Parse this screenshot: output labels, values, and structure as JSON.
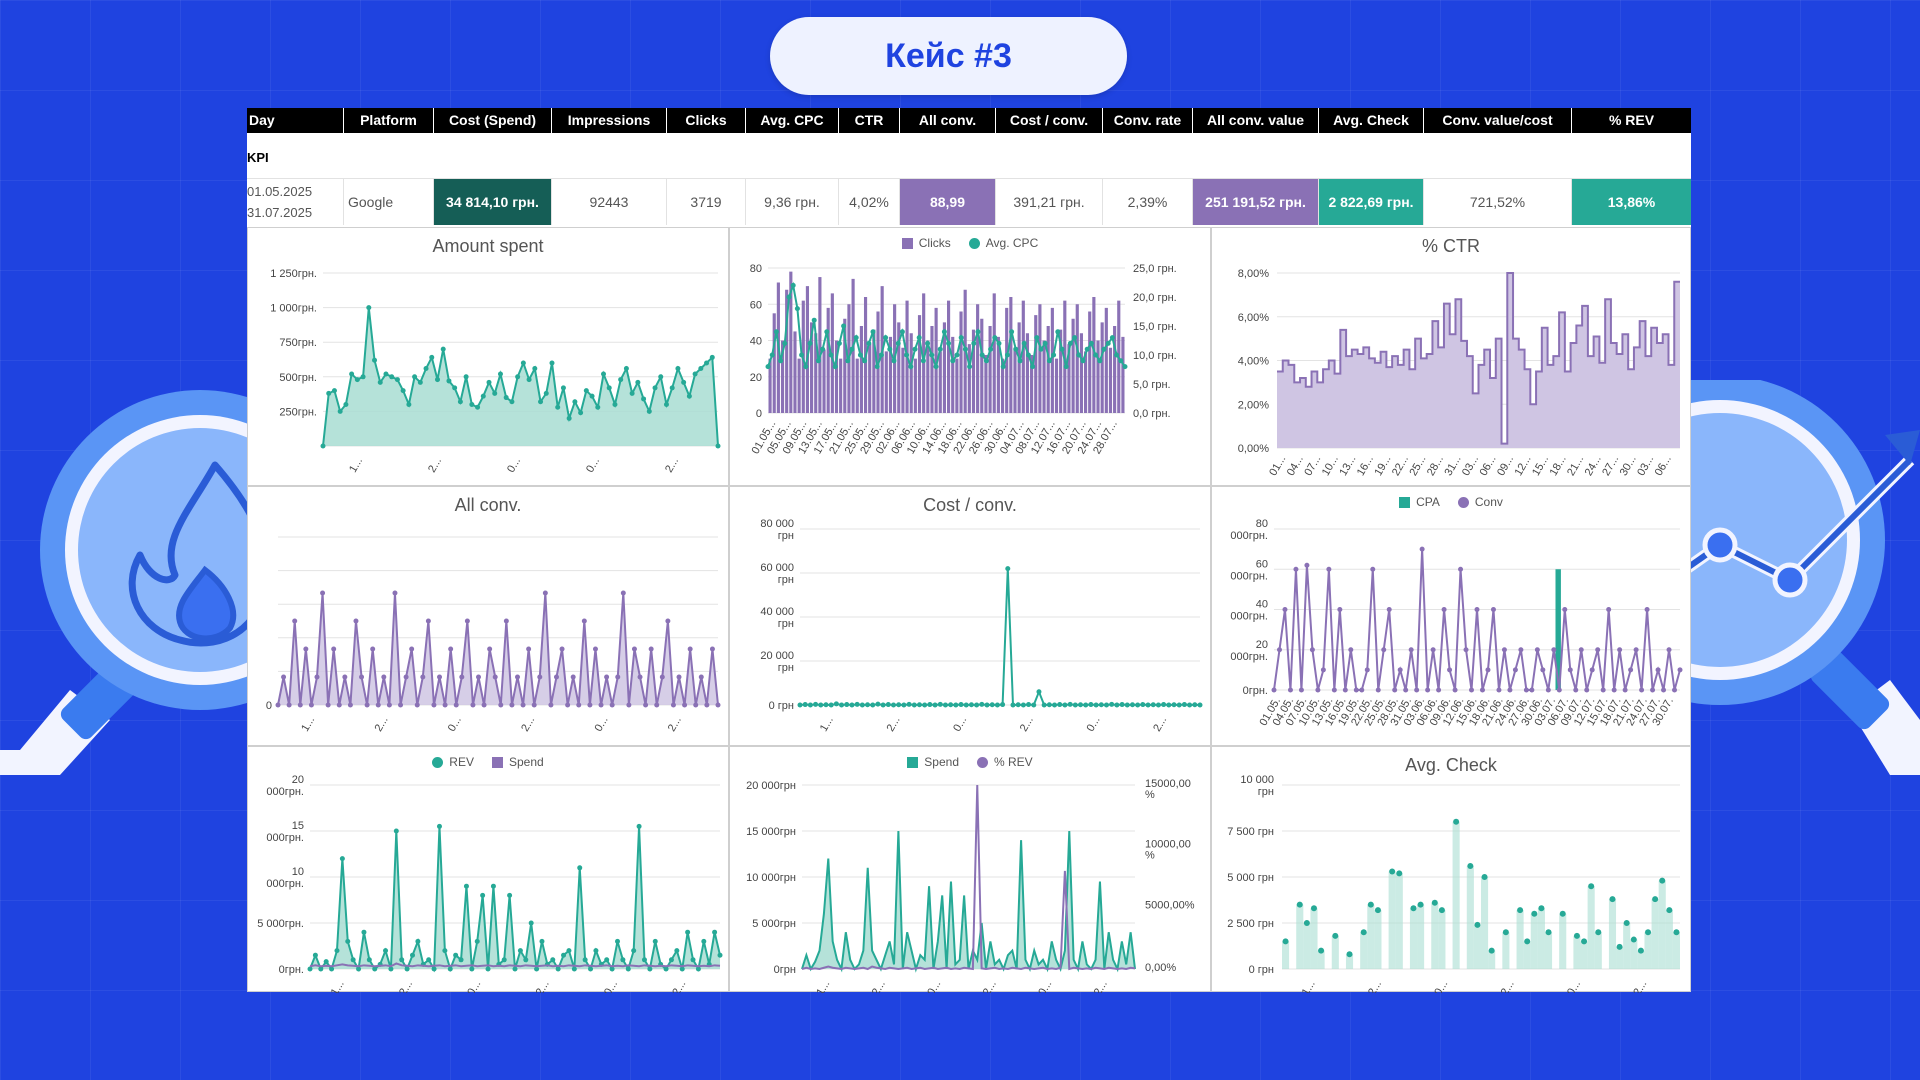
{
  "title": "Кейс #3",
  "colors": {
    "background": "#1f43e0",
    "teal": "#26a996",
    "teal_dark": "#155e56",
    "purple": "#8a71b5",
    "teal_fill": "#a8ddd2",
    "purple_fill": "#cfc5e3"
  },
  "table": {
    "headers": [
      "Day",
      "Platform",
      "Cost (Spend)",
      "Impressions",
      "Clicks",
      "Avg. CPC",
      "CTR",
      "All conv.",
      "Cost / conv.",
      "Conv. rate",
      "All conv. value",
      "Avg. Check",
      "Conv. value/cost",
      "% REV"
    ],
    "kpi_label": "KPI",
    "row": {
      "date_from": "01.05.2025",
      "date_to": "31.07.2025",
      "platform": "Google",
      "cost": "34 814,10 грн.",
      "impressions": "92443",
      "clicks": "3719",
      "avg_cpc": "9,36 грн.",
      "ctr": "4,02%",
      "all_conv": "88,99",
      "cost_conv": "391,21 грн.",
      "conv_rate": "2,39%",
      "all_conv_value": "251 191,52 грн.",
      "avg_check": "2 822,69 грн.",
      "conv_value_cost": "721,52%",
      "rev": "13,86%"
    }
  },
  "chart_data": [
    {
      "id": "amount-spent",
      "type": "area",
      "title": "Amount spent",
      "y_ticks": [
        "1 250грн.",
        "1 000грн.",
        "750грн.",
        "500грн.",
        "250грн."
      ],
      "x_ticks": [
        "1...",
        "2...",
        "0...",
        "0...",
        "2..."
      ],
      "ylim": [
        0,
        1250
      ],
      "values": [
        0,
        380,
        400,
        250,
        300,
        520,
        480,
        500,
        1000,
        620,
        460,
        520,
        500,
        480,
        400,
        300,
        500,
        460,
        560,
        640,
        480,
        700,
        470,
        420,
        320,
        500,
        300,
        280,
        360,
        460,
        380,
        520,
        350,
        320,
        500,
        600,
        480,
        560,
        320,
        380,
        600,
        280,
        420,
        200,
        320,
        240,
        400,
        360,
        280,
        520,
        420,
        300,
        480,
        560,
        380,
        460,
        340,
        250,
        420,
        500,
        300,
        420,
        560,
        460,
        360,
        520,
        560,
        600,
        640,
        0
      ]
    },
    {
      "id": "clicks-cpc",
      "type": "bar",
      "legend": [
        "Clicks",
        "Avg. CPC"
      ],
      "y_left_ticks": [
        "80",
        "60",
        "40",
        "20",
        "0"
      ],
      "y_right_ticks": [
        "25,0 грн.",
        "20,0 грн.",
        "15,0 грн.",
        "10,0 грн.",
        "5,0 грн.",
        "0,0 грн."
      ],
      "x_ticks": [
        "01.05...",
        "05.05...",
        "09.05...",
        "13.05...",
        "17.05...",
        "21.05...",
        "25.05...",
        "29.05...",
        "02.06...",
        "06.06...",
        "10.06...",
        "14.06...",
        "18.06...",
        "22.06...",
        "26.06...",
        "30.06...",
        "04.07...",
        "08.07...",
        "12.07...",
        "16.07...",
        "20.07...",
        "24.07...",
        "28.07..."
      ],
      "clicks": [
        30,
        55,
        72,
        40,
        68,
        78,
        45,
        30,
        62,
        70,
        50,
        44,
        75,
        35,
        58,
        66,
        40,
        30,
        52,
        60,
        74,
        30,
        48,
        64,
        38,
        46,
        56,
        70,
        34,
        42,
        60,
        50,
        36,
        62,
        44,
        30,
        54,
        66,
        40,
        48,
        58,
        34,
        50,
        62,
        42,
        30,
        56,
        68,
        38,
        46,
        60,
        52,
        32,
        48,
        66,
        42,
        30,
        58,
        64,
        36,
        50,
        62,
        44,
        32,
        54,
        60,
        40,
        48,
        58,
        30,
        46,
        62,
        38,
        52,
        60,
        44,
        34,
        56,
        64,
        40,
        50,
        58,
        36,
        48,
        62,
        42
      ],
      "cpc": [
        8,
        10,
        14,
        9,
        12,
        20,
        22,
        18,
        10,
        8,
        12,
        16,
        9,
        11,
        14,
        10,
        8,
        12,
        15,
        9,
        11,
        13,
        10,
        9,
        12,
        14,
        8,
        10,
        13,
        11,
        9,
        12,
        14,
        10,
        8,
        11,
        13,
        9,
        12,
        10,
        8,
        11,
        14,
        12,
        9,
        10,
        13,
        11,
        8,
        12,
        14,
        10,
        9,
        11,
        13,
        12,
        8,
        10,
        14,
        11,
        9,
        12,
        10,
        8,
        13,
        11,
        12,
        9,
        10,
        14,
        11,
        8,
        12,
        13,
        10,
        9,
        11,
        12,
        10,
        9,
        11,
        12,
        13,
        10,
        9,
        8
      ]
    },
    {
      "id": "ctr",
      "type": "area",
      "title": "% CTR",
      "y_ticks": [
        "8,00%",
        "6,00%",
        "4,00%",
        "2,00%",
        "0,00%"
      ],
      "x_ticks": [
        "01...",
        "04...",
        "07...",
        "10...",
        "13...",
        "16...",
        "19...",
        "22...",
        "25...",
        "28...",
        "31...",
        "03...",
        "06...",
        "09...",
        "12...",
        "15...",
        "18...",
        "21...",
        "24...",
        "27...",
        "30...",
        "03...",
        "06..."
      ],
      "ylim": [
        0,
        8
      ],
      "values": [
        3.5,
        4,
        3.8,
        3,
        3.2,
        2.8,
        3.5,
        3,
        3.6,
        4,
        3.4,
        5.4,
        4.2,
        4.5,
        4.3,
        4.6,
        4.1,
        3.9,
        4.4,
        3.7,
        4.2,
        3.8,
        4.5,
        3.6,
        5,
        4.1,
        4.3,
        5.8,
        4.6,
        6.6,
        5.2,
        6.8,
        4.9,
        4.2,
        2.5,
        3.8,
        4.5,
        3.2,
        5,
        0.2,
        8,
        5,
        4.5,
        3.6,
        2,
        3.5,
        5.5,
        3.8,
        4.2,
        6.2,
        3.5,
        4.8,
        5.6,
        6.5,
        4.2,
        5.1,
        3.9,
        6.8,
        4.8,
        4.3,
        5.2,
        3.6,
        4.6,
        5.8,
        4.2,
        5.5,
        4.8,
        5.2,
        3.8,
        7.6
      ]
    },
    {
      "id": "all-conv",
      "type": "area",
      "title": "All conv.",
      "y_ticks": [
        "0"
      ],
      "x_ticks": [
        "1...",
        "2...",
        "0...",
        "2...",
        "0...",
        "2..."
      ],
      "values": [
        0,
        1,
        0,
        3,
        0,
        2,
        0,
        1,
        4,
        0,
        2,
        0,
        1,
        0,
        3,
        1,
        0,
        2,
        0,
        1,
        0,
        4,
        0,
        1,
        2,
        0,
        1,
        3,
        0,
        1,
        0,
        2,
        0,
        1,
        3,
        0,
        1,
        0,
        2,
        1,
        0,
        3,
        0,
        1,
        0,
        2,
        0,
        1,
        4,
        0,
        1,
        2,
        0,
        1,
        0,
        3,
        0,
        2,
        0,
        1,
        0,
        1,
        4,
        0,
        2,
        1,
        0,
        2,
        0,
        1,
        3,
        0,
        1,
        0,
        2,
        0,
        1,
        0,
        2,
        0
      ]
    },
    {
      "id": "cost-conv",
      "type": "line",
      "title": "Cost / conv.",
      "y_ticks": [
        "80 000 грн",
        "60 000 грн",
        "40 000 грн",
        "20 000 грн",
        "0 грн"
      ],
      "x_ticks": [
        "1...",
        "2...",
        "0...",
        "2...",
        "0...",
        "2..."
      ],
      "ylim": [
        0,
        80000
      ],
      "values": [
        0,
        200,
        0,
        300,
        0,
        100,
        0,
        500,
        0,
        200,
        0,
        300,
        0,
        100,
        0,
        400,
        0,
        200,
        0,
        100,
        0,
        300,
        0,
        100,
        0,
        200,
        0,
        300,
        0,
        100,
        0,
        200,
        0,
        100,
        0,
        300,
        0,
        100,
        0,
        200,
        62000,
        0,
        100,
        0,
        200,
        0,
        6000,
        0,
        100,
        0,
        200,
        0,
        300,
        0,
        100,
        0,
        200,
        0,
        100,
        0,
        300,
        0,
        200,
        0,
        100,
        0,
        200,
        0,
        100,
        0,
        200,
        0,
        100,
        0,
        200,
        0,
        100,
        0
      ]
    },
    {
      "id": "cpa-conv",
      "type": "bar",
      "legend": [
        "CPA",
        "Conv"
      ],
      "y_ticks": [
        "80 000грн.",
        "60 000грн.",
        "40 000грн.",
        "20 000грн.",
        "0грн."
      ],
      "x_ticks": [
        "01.05.",
        "04.05.",
        "07.05.",
        "10.05.",
        "13.05.",
        "16.05.",
        "19.05.",
        "22.05.",
        "25.05.",
        "28.05.",
        "31.05.",
        "03.06.",
        "06.06.",
        "09.06.",
        "12.06.",
        "15.06.",
        "18.06.",
        "21.06.",
        "24.06.",
        "27.06.",
        "30.06.",
        "03.07.",
        "06.07.",
        "09.07.",
        "12.07.",
        "15.07.",
        "18.07.",
        "21.07.",
        "24.07.",
        "27.07.",
        "30.07."
      ],
      "ylim": [
        0,
        80000
      ],
      "cpa": [
        0,
        0,
        0,
        0,
        0,
        0,
        0,
        0,
        0,
        0,
        0,
        0,
        0,
        0,
        0,
        0,
        0,
        0,
        0,
        0,
        0,
        0,
        0,
        0,
        0,
        0,
        0,
        0,
        0,
        0,
        0,
        0,
        0,
        0,
        0,
        0,
        0,
        0,
        0,
        0,
        0,
        0,
        0,
        0,
        0,
        0,
        0,
        0,
        0,
        0,
        0,
        0,
        60000,
        0,
        0,
        0,
        0,
        0,
        0,
        0,
        0,
        0,
        0,
        0,
        0,
        0,
        0,
        0,
        0,
        0,
        0,
        0,
        0,
        0,
        0
      ],
      "conv": [
        0,
        20000,
        40000,
        0,
        60000,
        0,
        62000,
        20000,
        0,
        10000,
        60000,
        0,
        40000,
        0,
        20000,
        0,
        0,
        10000,
        60000,
        0,
        20000,
        40000,
        0,
        10000,
        0,
        20000,
        0,
        70000,
        0,
        20000,
        0,
        40000,
        10000,
        0,
        60000,
        20000,
        0,
        40000,
        0,
        10000,
        40000,
        0,
        20000,
        0,
        10000,
        20000,
        0,
        0,
        20000,
        10000,
        0,
        20000,
        0,
        40000,
        10000,
        0,
        20000,
        0,
        10000,
        20000,
        0,
        40000,
        0,
        20000,
        0,
        10000,
        20000,
        0,
        40000,
        0,
        10000,
        0,
        20000,
        0,
        10000
      ]
    },
    {
      "id": "rev-spend",
      "type": "area",
      "legend": [
        "REV",
        "Spend"
      ],
      "y_ticks": [
        "20 000грн.",
        "15 000грн.",
        "10 000грн.",
        "5 000грн.",
        "0грн."
      ],
      "x_ticks": [
        "1...",
        "2...",
        "0...",
        "2...",
        "0...",
        "2..."
      ],
      "ylim": [
        0,
        20000
      ],
      "rev": [
        0,
        1500,
        0,
        800,
        0,
        2000,
        12000,
        3000,
        1000,
        0,
        4000,
        1000,
        0,
        500,
        2000,
        0,
        15000,
        1000,
        0,
        1500,
        3000,
        500,
        1000,
        0,
        15500,
        2000,
        0,
        1500,
        1000,
        9000,
        0,
        3000,
        8000,
        0,
        9000,
        500,
        1000,
        8000,
        0,
        2000,
        1000,
        5000,
        0,
        3000,
        500,
        1000,
        0,
        1500,
        2000,
        0,
        11000,
        1000,
        0,
        2000,
        500,
        1000,
        0,
        3000,
        1000,
        0,
        2000,
        15500,
        1000,
        0,
        3000,
        500,
        0,
        1000,
        2000,
        0,
        4000,
        1000,
        0,
        3000,
        500,
        4000,
        1500
      ],
      "spend": [
        300,
        400,
        300,
        350,
        300,
        400,
        500,
        400,
        350,
        300,
        400,
        350,
        300,
        350,
        400,
        300,
        600,
        400,
        350,
        300,
        400,
        350,
        300,
        350,
        400,
        300,
        350,
        400,
        300,
        350,
        400,
        300,
        350,
        400,
        300,
        350,
        300,
        400,
        350,
        300,
        400,
        350,
        300,
        350,
        400,
        300,
        350,
        300,
        400,
        350,
        300,
        400,
        350,
        300,
        350,
        400,
        300,
        350,
        300,
        400,
        350,
        300,
        400,
        350,
        300,
        350,
        300,
        400,
        350,
        300,
        400,
        350,
        300,
        350,
        300,
        400,
        350
      ]
    },
    {
      "id": "spend-rev-pct",
      "type": "line",
      "legend": [
        "Spend",
        "% REV"
      ],
      "y_left_ticks": [
        "20 000грн",
        "15 000грн",
        "10 000грн",
        "5 000грн",
        "0грн"
      ],
      "y_right_ticks": [
        "15000,00 %",
        "10000,00 %",
        "5000,00%",
        "0,00%"
      ],
      "x_ticks": [
        "1...",
        "2...",
        "0...",
        "2...",
        "0...",
        "2..."
      ],
      "ylim": [
        0,
        20000
      ],
      "spend": [
        0,
        1500,
        0,
        800,
        2000,
        6000,
        12000,
        3000,
        1000,
        0,
        4000,
        1000,
        0,
        500,
        2000,
        11000,
        2000,
        1000,
        0,
        1500,
        3000,
        500,
        15000,
        0,
        4000,
        2000,
        0,
        1500,
        1000,
        9000,
        0,
        3000,
        8000,
        0,
        9500,
        500,
        1000,
        8000,
        0,
        2000,
        1000,
        5000,
        0,
        3000,
        500,
        1000,
        0,
        1500,
        2000,
        0,
        14000,
        1000,
        0,
        2000,
        500,
        1000,
        0,
        3000,
        1000,
        0,
        2000,
        15000,
        1000,
        0,
        3000,
        500,
        0,
        1000,
        9500,
        0,
        4000,
        1000,
        0,
        3000,
        500,
        4000,
        0
      ],
      "rev_pct": [
        0,
        100,
        0,
        50,
        0,
        100,
        200,
        100,
        50,
        0,
        100,
        50,
        0,
        50,
        100,
        0,
        200,
        100,
        50,
        0,
        100,
        50,
        0,
        50,
        100,
        0,
        50,
        100,
        0,
        50,
        100,
        0,
        50,
        100,
        0,
        50,
        0,
        100,
        50,
        0,
        18000,
        50,
        0,
        50,
        100,
        0,
        50,
        0,
        100,
        50,
        0,
        100,
        50,
        0,
        50,
        100,
        0,
        50,
        0,
        100,
        8000,
        0,
        100,
        50,
        0,
        50,
        0,
        100,
        50,
        0,
        100,
        50,
        0,
        50,
        0,
        100,
        50
      ]
    },
    {
      "id": "avg-check",
      "type": "scatter",
      "title": "Avg. Check",
      "y_ticks": [
        "10 000 грн",
        "7 500 грн",
        "5 000 грн",
        "2 500 грн",
        "0 грн"
      ],
      "x_ticks": [
        "1...",
        "2...",
        "0...",
        "2...",
        "0...",
        "2..."
      ],
      "ylim": [
        0,
        10000
      ],
      "values": [
        1500,
        0,
        3500,
        2500,
        3300,
        1000,
        0,
        1800,
        0,
        800,
        0,
        2000,
        3500,
        3200,
        0,
        5300,
        5200,
        0,
        3300,
        3500,
        0,
        3600,
        3200,
        0,
        8000,
        0,
        5600,
        2400,
        5000,
        1000,
        0,
        2000,
        0,
        3200,
        1500,
        3000,
        3300,
        2000,
        0,
        3000,
        0,
        1800,
        1500,
        4500,
        2000,
        0,
        3800,
        1200,
        2500,
        1600,
        1000,
        2000,
        3800,
        4800,
        3200,
        2000
      ]
    }
  ]
}
